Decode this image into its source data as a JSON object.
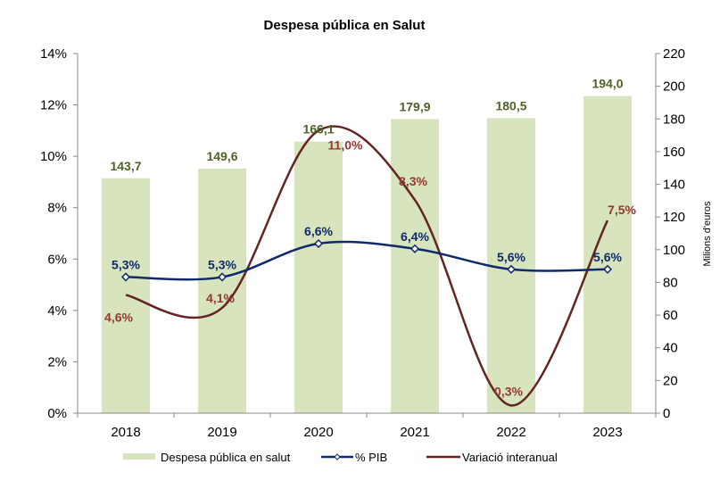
{
  "chart_data": {
    "type": "bar+line",
    "title": "Despesa pública en Salut",
    "categories": [
      "2018",
      "2019",
      "2020",
      "2021",
      "2022",
      "2023"
    ],
    "y_left": {
      "range": [
        0,
        14
      ],
      "ticks": [
        "0%",
        "2%",
        "4%",
        "6%",
        "8%",
        "10%",
        "12%",
        "14%"
      ],
      "label": ""
    },
    "y_right": {
      "range": [
        0,
        220
      ],
      "ticks": [
        "0",
        "20",
        "40",
        "60",
        "80",
        "100",
        "120",
        "140",
        "160",
        "180",
        "200",
        "220"
      ],
      "label": "Milions d'euros"
    },
    "grid": false,
    "legend_position": "bottom",
    "series": [
      {
        "name": "Despesa pública en salut",
        "type": "bar",
        "axis": "right",
        "color": "#d7e4bd",
        "label_color": "#4f6228",
        "values": [
          143.7,
          149.6,
          166.1,
          179.9,
          180.5,
          194.0
        ],
        "labels": [
          "143,7",
          "149,6",
          "166,1",
          "179,9",
          "180,5",
          "194,0"
        ]
      },
      {
        "name": "% PIB",
        "type": "line",
        "axis": "left",
        "color": "#0f2a6b",
        "marker": "diamond",
        "values": [
          5.3,
          5.3,
          6.6,
          6.4,
          5.6,
          5.6
        ],
        "labels": [
          "5,3%",
          "5,3%",
          "6,6%",
          "6,4%",
          "5,6%",
          "5,6%"
        ]
      },
      {
        "name": "Variació interanual",
        "type": "line",
        "axis": "left",
        "color": "#632523",
        "label_color": "#953735",
        "values": [
          4.6,
          4.1,
          11.0,
          8.3,
          0.3,
          7.5
        ],
        "labels": [
          "4,6%",
          "4,1%",
          "11,0%",
          "8,3%",
          "0,3%",
          "7,5%"
        ]
      }
    ]
  }
}
